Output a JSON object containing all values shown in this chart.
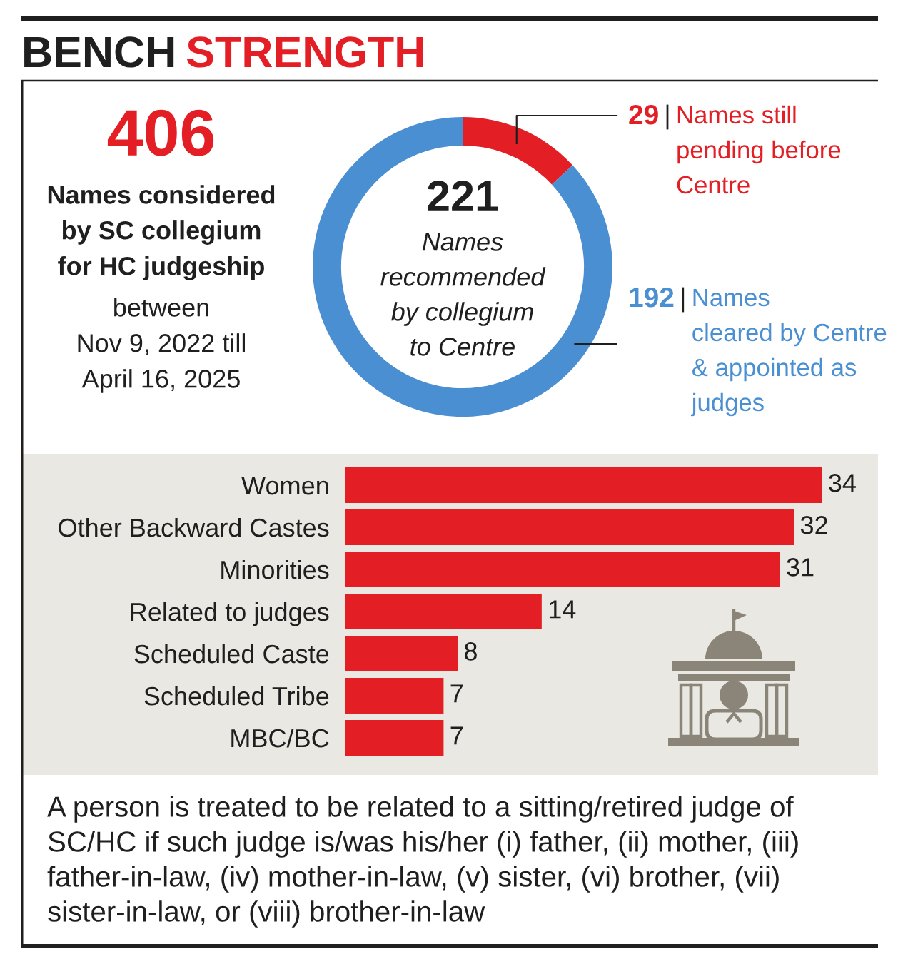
{
  "chart_data": [
    {
      "type": "donut",
      "title": "BENCH STRENGTH",
      "categories": [
        "Names still\npending before\nCentre",
        "Names\ncleared by Centre\n& appointed as\njudges"
      ],
      "values": [
        29,
        192
      ],
      "colors": [
        "#e31e24",
        "#4b8fd3"
      ],
      "data_labels": true,
      "annotations": [
        "406",
        "Names considered\nby SC collegium\nfor HC judgeship",
        "between\nNov 9, 2022 till\nApril 16, 2025",
        "221",
        "Names\nrecommended\nby collegium\nto Centre"
      ]
    },
    {
      "type": "bar",
      "orientation": "horizontal",
      "categories": [
        "Women",
        "Other Backward Castes",
        "Minorities",
        "Related to judges",
        "Scheduled Caste",
        "Scheduled Tribe",
        "MBC/BC"
      ],
      "values": [
        34,
        32,
        31,
        14,
        8,
        7,
        7
      ],
      "color": "#e31e24",
      "data_labels": true,
      "xlim": [
        0,
        38
      ],
      "tick_labels": "y",
      "annotations": [
        "A person is treated to be related to a sitting/retired judge of\nSC/HC if such judge is/was his/her (i) father, (ii) mother, (iii)\nfather-in-law, (iv) mother-in-law, (v) sister, (vi) brother, (vii)\nsister-in-law, or (viii) brother-in-law"
      ]
    }
  ]
}
